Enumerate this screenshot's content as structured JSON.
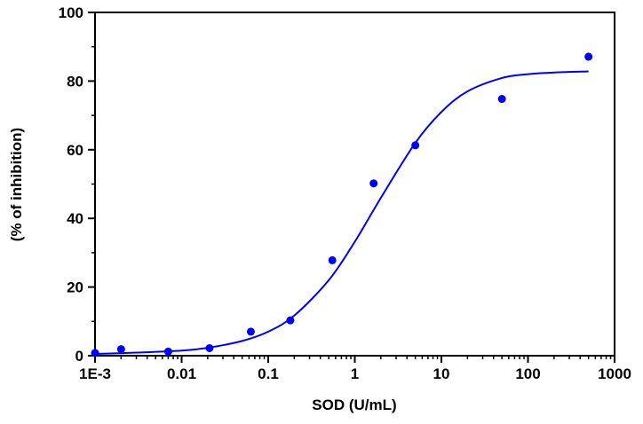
{
  "chart_data": {
    "type": "scatter",
    "title": "",
    "xlabel": "SOD (U/mL)",
    "ylabel": "(% of inhibition)",
    "x_scale": "log",
    "xlim": [
      0.001,
      1000
    ],
    "ylim": [
      0,
      100
    ],
    "x_ticks": [
      {
        "value": 0.001,
        "label": "1E-3"
      },
      {
        "value": 0.01,
        "label": "0.01"
      },
      {
        "value": 0.1,
        "label": "0.1"
      },
      {
        "value": 1,
        "label": "1"
      },
      {
        "value": 10,
        "label": "10"
      },
      {
        "value": 100,
        "label": "100"
      },
      {
        "value": 1000,
        "label": "1000"
      }
    ],
    "y_ticks": [
      {
        "value": 0,
        "label": "0"
      },
      {
        "value": 20,
        "label": "20"
      },
      {
        "value": 40,
        "label": "40"
      },
      {
        "value": 60,
        "label": "60"
      },
      {
        "value": 80,
        "label": "80"
      },
      {
        "value": 100,
        "label": "100"
      }
    ],
    "grid": false,
    "legend": "none",
    "color": "#0000ff",
    "points": [
      {
        "x": 0.001,
        "y": 0.8
      },
      {
        "x": 0.002,
        "y": 1.9
      },
      {
        "x": 0.007,
        "y": 1.2
      },
      {
        "x": 0.021,
        "y": 2.2
      },
      {
        "x": 0.063,
        "y": 7.0
      },
      {
        "x": 0.18,
        "y": 10.3
      },
      {
        "x": 0.55,
        "y": 27.8
      },
      {
        "x": 1.65,
        "y": 50.2
      },
      {
        "x": 5.0,
        "y": 61.3
      },
      {
        "x": 50,
        "y": 74.8
      },
      {
        "x": 500,
        "y": 87.1
      }
    ],
    "fit_curve": [
      {
        "x": 0.001,
        "y": 0.5
      },
      {
        "x": 0.003,
        "y": 0.9
      },
      {
        "x": 0.01,
        "y": 1.5
      },
      {
        "x": 0.02,
        "y": 2.3
      },
      {
        "x": 0.05,
        "y": 4.3
      },
      {
        "x": 0.1,
        "y": 7.0
      },
      {
        "x": 0.2,
        "y": 11.7
      },
      {
        "x": 0.5,
        "y": 22.0
      },
      {
        "x": 1,
        "y": 33.2
      },
      {
        "x": 2,
        "y": 46.0
      },
      {
        "x": 5,
        "y": 62.0
      },
      {
        "x": 10,
        "y": 71.0
      },
      {
        "x": 20,
        "y": 77.0
      },
      {
        "x": 50,
        "y": 80.9
      },
      {
        "x": 100,
        "y": 82.0
      },
      {
        "x": 200,
        "y": 82.5
      },
      {
        "x": 500,
        "y": 82.8
      }
    ]
  }
}
